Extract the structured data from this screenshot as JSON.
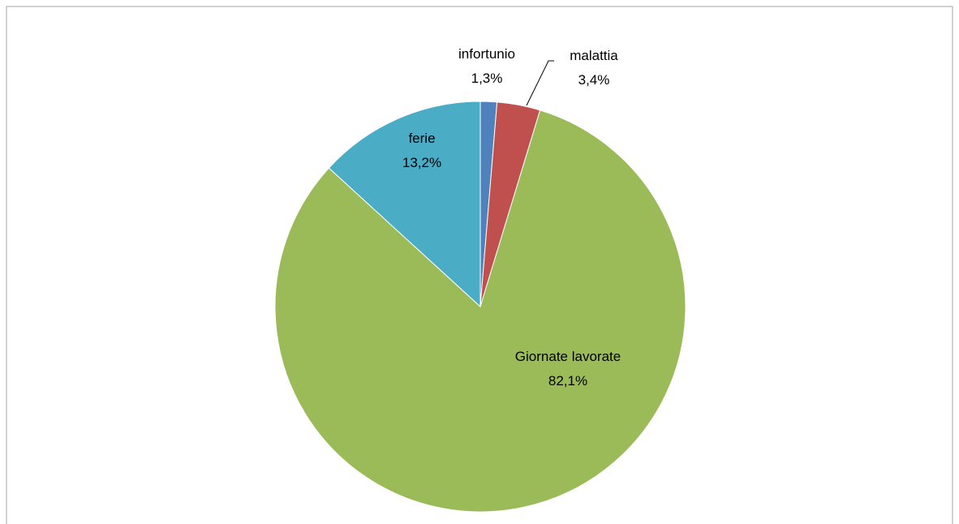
{
  "chart_data": {
    "type": "pie",
    "categories": [
      "infortunio",
      "malattia",
      "Giornate lavorate",
      "ferie"
    ],
    "values": [
      1.3,
      3.4,
      82.1,
      13.2
    ],
    "value_labels": [
      "1,3%",
      "3,4%",
      "82,1%",
      "13,2%"
    ],
    "colors": [
      "#4f81bd",
      "#c0504d",
      "#9bbb59",
      "#4bacc6"
    ]
  }
}
